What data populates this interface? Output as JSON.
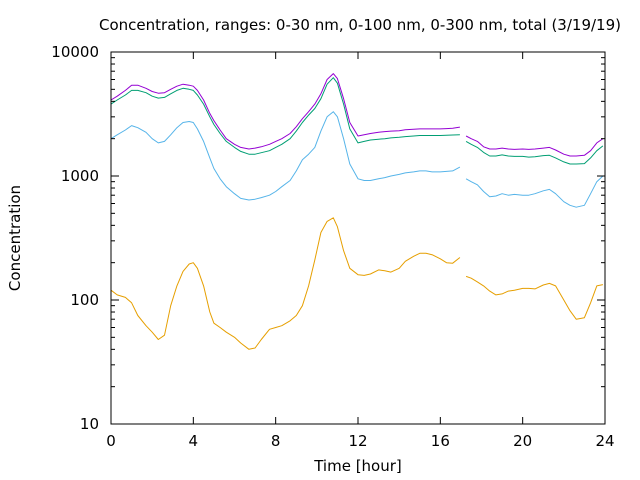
{
  "chart_data": {
    "type": "line",
    "title": "Concentration, ranges: 0-30 nm, 0-100 nm, 0-300 nm, total (3/19/19)",
    "xlabel": "Time [hour]",
    "ylabel": "Concentration",
    "xlim": [
      0,
      24
    ],
    "ylim": [
      10,
      10000
    ],
    "yscale": "log",
    "grid": false,
    "x_ticks": [
      0,
      4,
      8,
      12,
      16,
      20,
      24
    ],
    "x_tick_labels": [
      "0",
      "4",
      "8",
      "12",
      "16",
      "20",
      "24"
    ],
    "y_ticks": [
      10,
      100,
      1000,
      10000
    ],
    "y_tick_labels": [
      "10",
      "100",
      "1000",
      "10000"
    ],
    "gap_after_hour": 17,
    "series": [
      {
        "color": "#e69f00",
        "x": [
          0,
          0.3,
          0.7,
          1.0,
          1.3,
          1.7,
          2.0,
          2.3,
          2.6,
          2.9,
          3.2,
          3.5,
          3.8,
          4.0,
          4.2,
          4.5,
          4.8,
          5.0,
          5.3,
          5.6,
          6.0,
          6.3,
          6.7,
          7.0,
          7.3,
          7.7,
          8.0,
          8.3,
          8.7,
          9.0,
          9.3,
          9.6,
          9.9,
          10.2,
          10.5,
          10.8,
          11.0,
          11.3,
          11.6,
          12.0,
          12.3,
          12.6,
          13.0,
          13.3,
          13.6,
          14.0,
          14.3,
          14.7,
          15.0,
          15.3,
          15.6,
          16.0,
          16.3,
          16.6,
          16.95,
          17.25,
          17.5,
          17.8,
          18.1,
          18.4,
          18.7,
          19.0,
          19.3,
          19.6,
          20.0,
          20.3,
          20.6,
          21.0,
          21.3,
          21.6,
          22.0,
          22.3,
          22.6,
          23.0,
          23.3,
          23.6,
          23.9
        ],
        "values": [
          120,
          110,
          105,
          95,
          75,
          62,
          55,
          48,
          52,
          90,
          130,
          170,
          195,
          200,
          180,
          130,
          80,
          65,
          60,
          55,
          50,
          45,
          40,
          41,
          48,
          58,
          60,
          62,
          68,
          75,
          90,
          130,
          210,
          350,
          430,
          460,
          390,
          250,
          180,
          160,
          158,
          162,
          175,
          172,
          168,
          180,
          205,
          225,
          238,
          238,
          232,
          215,
          200,
          198,
          220,
          155,
          150,
          140,
          130,
          118,
          110,
          112,
          118,
          120,
          124,
          124,
          123,
          132,
          136,
          130,
          100,
          82,
          70,
          72,
          95,
          130,
          133
        ]
      },
      {
        "color": "#56b4e9",
        "x": [
          0,
          0.3,
          0.7,
          1.0,
          1.3,
          1.7,
          2.0,
          2.3,
          2.6,
          2.9,
          3.2,
          3.5,
          3.8,
          4.0,
          4.2,
          4.5,
          4.8,
          5.0,
          5.3,
          5.6,
          6.0,
          6.3,
          6.7,
          7.0,
          7.3,
          7.7,
          8.0,
          8.3,
          8.7,
          9.0,
          9.3,
          9.6,
          9.9,
          10.2,
          10.5,
          10.8,
          11.0,
          11.3,
          11.6,
          12.0,
          12.3,
          12.6,
          13.0,
          13.3,
          13.6,
          14.0,
          14.3,
          14.7,
          15.0,
          15.3,
          15.6,
          16.0,
          16.3,
          16.6,
          16.95,
          17.25,
          17.5,
          17.8,
          18.1,
          18.4,
          18.7,
          19.0,
          19.3,
          19.6,
          20.0,
          20.3,
          20.6,
          21.0,
          21.3,
          21.6,
          22.0,
          22.3,
          22.6,
          23.0,
          23.3,
          23.6,
          23.9
        ],
        "values": [
          2000,
          2150,
          2350,
          2550,
          2450,
          2250,
          2000,
          1850,
          1900,
          2150,
          2450,
          2700,
          2750,
          2700,
          2400,
          1900,
          1400,
          1150,
          950,
          820,
          720,
          660,
          640,
          650,
          670,
          700,
          750,
          820,
          920,
          1100,
          1350,
          1500,
          1700,
          2300,
          3000,
          3300,
          3000,
          2000,
          1250,
          950,
          920,
          920,
          950,
          970,
          1000,
          1030,
          1060,
          1080,
          1100,
          1100,
          1080,
          1080,
          1090,
          1100,
          1180,
          950,
          900,
          850,
          750,
          680,
          690,
          720,
          700,
          710,
          700,
          700,
          720,
          760,
          780,
          720,
          620,
          580,
          560,
          580,
          720,
          900,
          1000
        ]
      },
      {
        "color": "#009e73",
        "x": [
          0,
          0.3,
          0.7,
          1.0,
          1.3,
          1.7,
          2.0,
          2.3,
          2.6,
          2.9,
          3.2,
          3.5,
          3.8,
          4.0,
          4.2,
          4.5,
          4.8,
          5.0,
          5.3,
          5.6,
          6.0,
          6.3,
          6.7,
          7.0,
          7.3,
          7.7,
          8.0,
          8.3,
          8.7,
          9.0,
          9.3,
          9.6,
          9.9,
          10.2,
          10.5,
          10.8,
          11.0,
          11.3,
          11.6,
          12.0,
          12.3,
          12.6,
          13.0,
          13.3,
          13.6,
          14.0,
          14.3,
          14.7,
          15.0,
          15.3,
          15.6,
          16.0,
          16.3,
          16.6,
          16.95,
          17.25,
          17.5,
          17.8,
          18.1,
          18.4,
          18.7,
          19.0,
          19.3,
          19.6,
          20.0,
          20.3,
          20.6,
          21.0,
          21.3,
          21.6,
          22.0,
          22.3,
          22.6,
          23.0,
          23.3,
          23.6,
          23.9
        ],
        "values": [
          3800,
          4100,
          4500,
          4900,
          4900,
          4700,
          4400,
          4250,
          4300,
          4600,
          4900,
          5100,
          5000,
          4900,
          4500,
          3800,
          3000,
          2600,
          2200,
          1900,
          1700,
          1580,
          1500,
          1500,
          1540,
          1600,
          1700,
          1800,
          2000,
          2300,
          2700,
          3100,
          3500,
          4200,
          5500,
          6200,
          5600,
          3800,
          2400,
          1850,
          1900,
          1950,
          1980,
          2000,
          2030,
          2050,
          2080,
          2100,
          2120,
          2120,
          2120,
          2120,
          2130,
          2140,
          2150,
          1900,
          1800,
          1700,
          1550,
          1450,
          1450,
          1480,
          1450,
          1440,
          1440,
          1420,
          1430,
          1460,
          1470,
          1400,
          1300,
          1250,
          1250,
          1260,
          1400,
          1600,
          1750
        ]
      },
      {
        "color": "#9400d3",
        "x": [
          0,
          0.3,
          0.7,
          1.0,
          1.3,
          1.7,
          2.0,
          2.3,
          2.6,
          2.9,
          3.2,
          3.5,
          3.8,
          4.0,
          4.2,
          4.5,
          4.8,
          5.0,
          5.3,
          5.6,
          6.0,
          6.3,
          6.7,
          7.0,
          7.3,
          7.7,
          8.0,
          8.3,
          8.7,
          9.0,
          9.3,
          9.6,
          9.9,
          10.2,
          10.5,
          10.8,
          11.0,
          11.3,
          11.6,
          12.0,
          12.3,
          12.6,
          13.0,
          13.3,
          13.6,
          14.0,
          14.3,
          14.7,
          15.0,
          15.3,
          15.6,
          16.0,
          16.3,
          16.6,
          16.95,
          17.25,
          17.5,
          17.8,
          18.1,
          18.4,
          18.7,
          19.0,
          19.3,
          19.6,
          20.0,
          20.3,
          20.6,
          21.0,
          21.3,
          21.6,
          22.0,
          22.3,
          22.6,
          23.0,
          23.3,
          23.6,
          23.9
        ],
        "values": [
          4100,
          4400,
          4900,
          5400,
          5400,
          5100,
          4800,
          4650,
          4700,
          5000,
          5300,
          5500,
          5400,
          5300,
          4900,
          4100,
          3200,
          2800,
          2350,
          2000,
          1800,
          1700,
          1650,
          1680,
          1720,
          1800,
          1900,
          2000,
          2200,
          2500,
          2900,
          3300,
          3800,
          4600,
          6000,
          6700,
          6100,
          4200,
          2700,
          2100,
          2150,
          2200,
          2250,
          2280,
          2300,
          2320,
          2360,
          2380,
          2400,
          2400,
          2400,
          2400,
          2410,
          2430,
          2480,
          2100,
          2000,
          1900,
          1720,
          1650,
          1650,
          1680,
          1650,
          1640,
          1650,
          1640,
          1650,
          1680,
          1700,
          1620,
          1500,
          1450,
          1450,
          1470,
          1600,
          1850,
          2000
        ]
      }
    ]
  }
}
